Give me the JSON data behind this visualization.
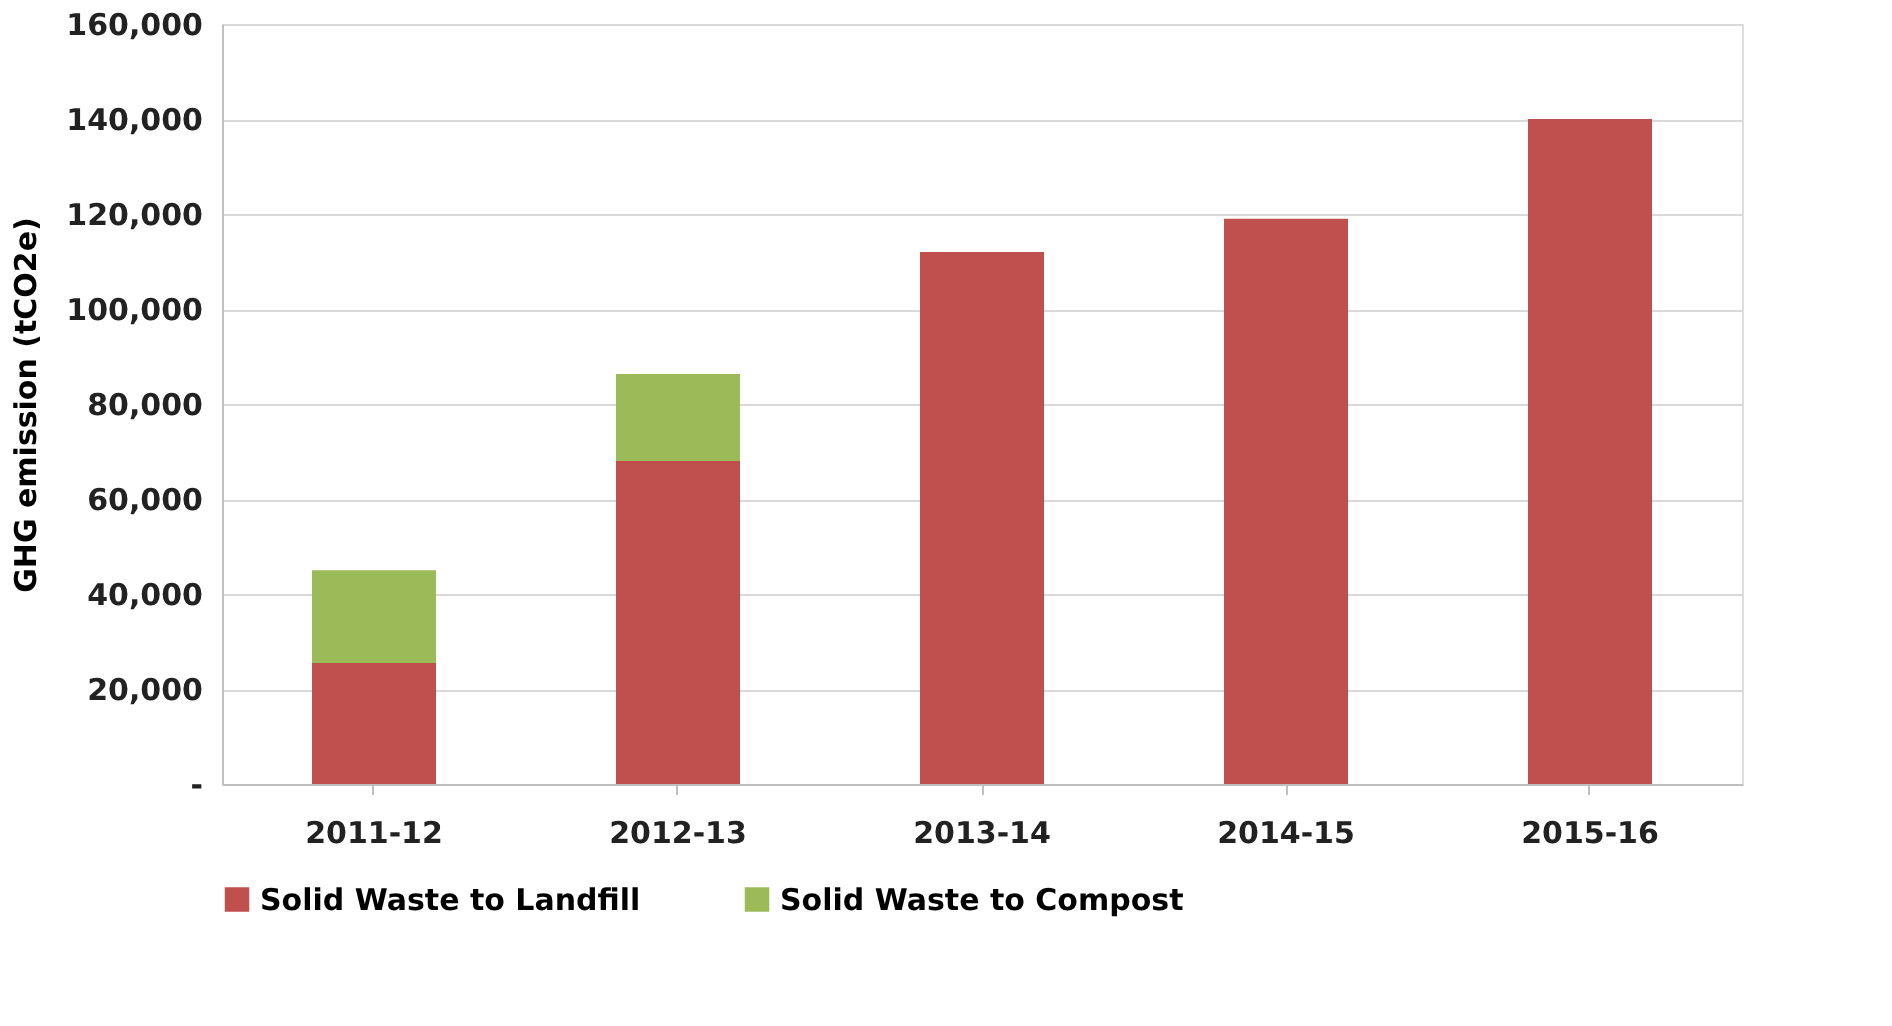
{
  "chart_data": {
    "type": "bar",
    "stacked": true,
    "ylabel": "GHG emission (tCO2e)",
    "categories": [
      "2011-12",
      "2012-13",
      "2013-14",
      "2014-15",
      "2015-16"
    ],
    "series": [
      {
        "name": "Solid Waste to Landfill",
        "color": "#c0504d",
        "values": [
          25500,
          68000,
          112000,
          119000,
          140000
        ]
      },
      {
        "name": "Solid Waste to Compost",
        "color": "#9bbb59",
        "values": [
          19500,
          18300,
          null,
          null,
          null
        ]
      }
    ],
    "ylim": [
      0,
      160000
    ],
    "yticks": [
      {
        "value": 0,
        "label": "-"
      },
      {
        "value": 20000,
        "label": "20,000"
      },
      {
        "value": 40000,
        "label": "40,000"
      },
      {
        "value": 60000,
        "label": "60,000"
      },
      {
        "value": 80000,
        "label": "80,000"
      },
      {
        "value": 100000,
        "label": "100,000"
      },
      {
        "value": 120000,
        "label": "120,000"
      },
      {
        "value": 140000,
        "label": "140,000"
      },
      {
        "value": 160000,
        "label": "160,000"
      }
    ],
    "grid": "y",
    "legend": "bottom"
  }
}
